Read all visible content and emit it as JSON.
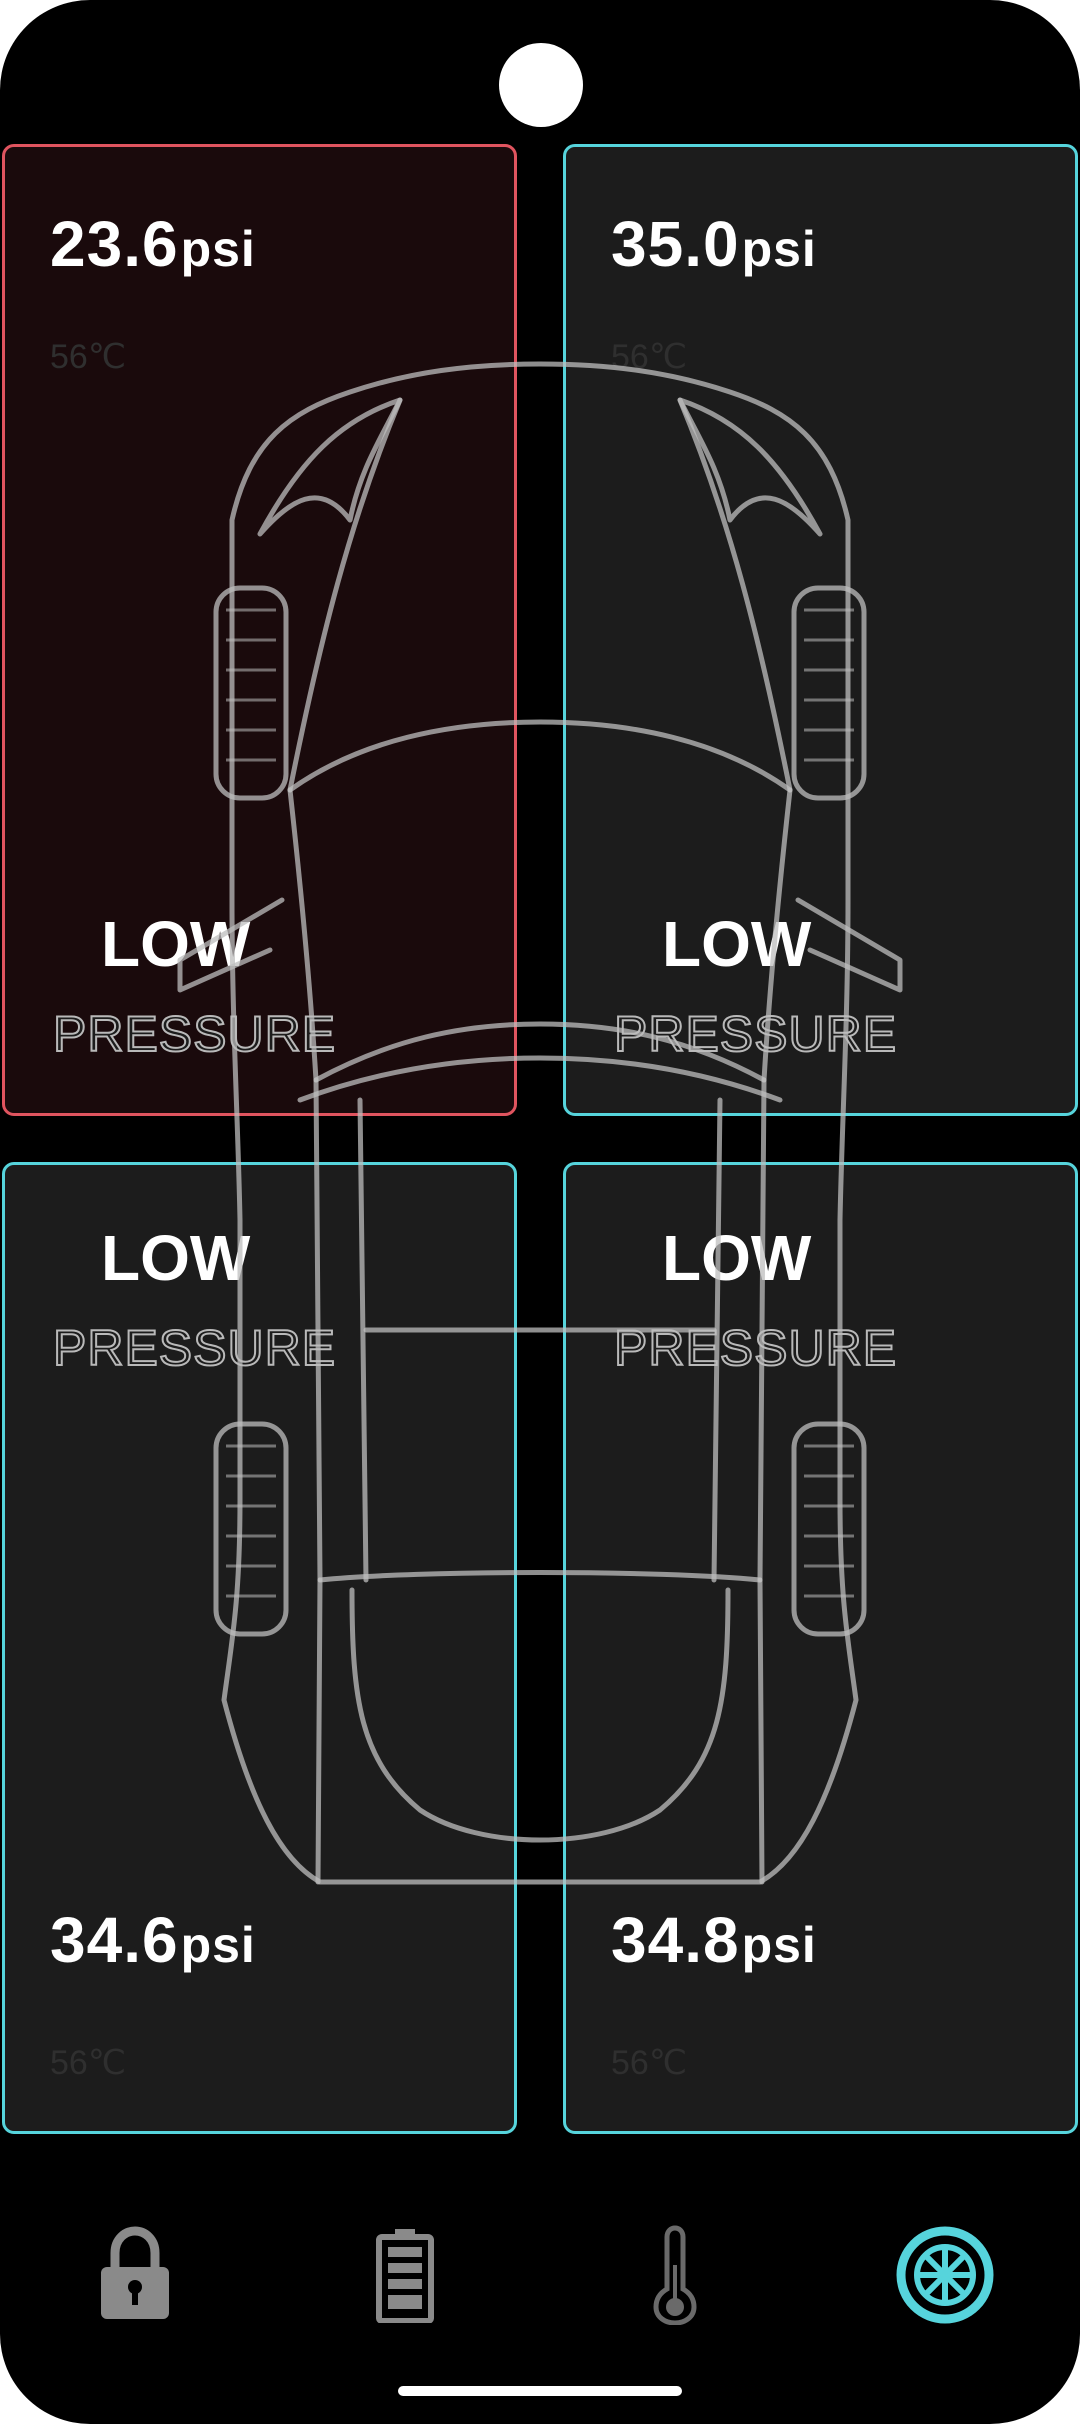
{
  "tires": {
    "front_left": {
      "pressure": "23.6",
      "unit": "psi",
      "temperature": "56℃",
      "status_line1": "LOW",
      "status_line2": "PRESSURE",
      "state": "alert"
    },
    "front_right": {
      "pressure": "35.0",
      "unit": "psi",
      "temperature": "56℃",
      "status_line1": "LOW",
      "status_line2": "PRESSURE",
      "state": "normal"
    },
    "rear_left": {
      "pressure": "34.6",
      "unit": "psi",
      "temperature": "56℃",
      "status_line1": "LOW",
      "status_line2": "PRESSURE",
      "state": "normal"
    },
    "rear_right": {
      "pressure": "34.8",
      "unit": "psi",
      "temperature": "56℃",
      "status_line1": "LOW",
      "status_line2": "PRESSURE",
      "state": "normal"
    }
  },
  "colors": {
    "alert_border": "#e0545f",
    "normal_border": "#56d4dc",
    "active_nav": "#56d4dc",
    "inactive_nav": "#8a8a8a"
  },
  "navigation": {
    "items": [
      {
        "icon": "lock-icon",
        "active": false
      },
      {
        "icon": "battery-icon",
        "active": false
      },
      {
        "icon": "thermometer-icon",
        "active": false
      },
      {
        "icon": "tire-icon",
        "active": true
      }
    ]
  }
}
